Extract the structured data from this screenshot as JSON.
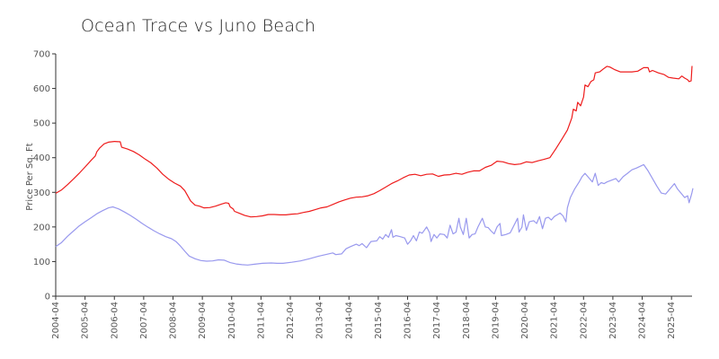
{
  "chart_data": {
    "type": "line",
    "title": "Ocean Trace vs  Juno Beach",
    "xlabel": "",
    "ylabel": "Price Per Sq. Ft",
    "ylim": [
      0,
      700
    ],
    "yticks": [
      0,
      100,
      200,
      300,
      400,
      500,
      600,
      700
    ],
    "xticks": [
      "2004-04",
      "2005-04",
      "2006-04",
      "2007-04",
      "2008-04",
      "2009-04",
      "2010-04",
      "2011-04",
      "2012-04",
      "2013-04",
      "2014-04",
      "2015-04",
      "2016-04",
      "2017-04",
      "2018-04",
      "2019-04",
      "2020-04",
      "2021-04",
      "2022-04",
      "2023-04",
      "2024-04",
      "2025-04"
    ],
    "x_range": [
      2004.25,
      2025.95
    ],
    "grid": false,
    "legend": "none",
    "series": [
      {
        "color": "#ee1c1c",
        "points": [
          [
            2004.25,
            297
          ],
          [
            2004.45,
            307
          ],
          [
            2004.65,
            322
          ],
          [
            2004.85,
            338
          ],
          [
            2005.05,
            355
          ],
          [
            2005.25,
            373
          ],
          [
            2005.45,
            392
          ],
          [
            2005.6,
            405
          ],
          [
            2005.65,
            417
          ],
          [
            2005.75,
            428
          ],
          [
            2005.9,
            440
          ],
          [
            2006.05,
            445
          ],
          [
            2006.25,
            447
          ],
          [
            2006.45,
            446
          ],
          [
            2006.5,
            430
          ],
          [
            2006.7,
            425
          ],
          [
            2006.9,
            418
          ],
          [
            2007.1,
            408
          ],
          [
            2007.3,
            396
          ],
          [
            2007.5,
            385
          ],
          [
            2007.7,
            370
          ],
          [
            2007.9,
            352
          ],
          [
            2008.1,
            338
          ],
          [
            2008.3,
            327
          ],
          [
            2008.5,
            318
          ],
          [
            2008.65,
            305
          ],
          [
            2008.75,
            290
          ],
          [
            2008.85,
            275
          ],
          [
            2009.0,
            263
          ],
          [
            2009.15,
            260
          ],
          [
            2009.3,
            255
          ],
          [
            2009.5,
            256
          ],
          [
            2009.7,
            260
          ],
          [
            2009.9,
            266
          ],
          [
            2010.05,
            270
          ],
          [
            2010.15,
            268
          ],
          [
            2010.2,
            258
          ],
          [
            2010.3,
            252
          ],
          [
            2010.35,
            245
          ],
          [
            2010.5,
            240
          ],
          [
            2010.7,
            233
          ],
          [
            2010.9,
            229
          ],
          [
            2011.1,
            230
          ],
          [
            2011.3,
            232
          ],
          [
            2011.5,
            236
          ],
          [
            2011.7,
            236
          ],
          [
            2011.9,
            235
          ],
          [
            2012.1,
            235
          ],
          [
            2012.3,
            237
          ],
          [
            2012.5,
            238
          ],
          [
            2012.7,
            242
          ],
          [
            2012.9,
            245
          ],
          [
            2013.1,
            250
          ],
          [
            2013.3,
            255
          ],
          [
            2013.5,
            258
          ],
          [
            2013.7,
            265
          ],
          [
            2013.9,
            272
          ],
          [
            2014.1,
            278
          ],
          [
            2014.3,
            283
          ],
          [
            2014.5,
            286
          ],
          [
            2014.7,
            287
          ],
          [
            2014.9,
            290
          ],
          [
            2015.1,
            296
          ],
          [
            2015.3,
            305
          ],
          [
            2015.5,
            315
          ],
          [
            2015.7,
            325
          ],
          [
            2015.9,
            333
          ],
          [
            2016.1,
            342
          ],
          [
            2016.3,
            350
          ],
          [
            2016.5,
            352
          ],
          [
            2016.7,
            348
          ],
          [
            2016.9,
            352
          ],
          [
            2017.1,
            353
          ],
          [
            2017.3,
            346
          ],
          [
            2017.5,
            350
          ],
          [
            2017.7,
            351
          ],
          [
            2017.9,
            355
          ],
          [
            2018.1,
            352
          ],
          [
            2018.3,
            358
          ],
          [
            2018.5,
            362
          ],
          [
            2018.7,
            362
          ],
          [
            2018.9,
            372
          ],
          [
            2019.1,
            378
          ],
          [
            2019.3,
            390
          ],
          [
            2019.5,
            388
          ],
          [
            2019.7,
            383
          ],
          [
            2019.9,
            380
          ],
          [
            2020.1,
            382
          ],
          [
            2020.3,
            388
          ],
          [
            2020.5,
            386
          ],
          [
            2020.7,
            391
          ],
          [
            2020.9,
            395
          ],
          [
            2021.1,
            400
          ],
          [
            2021.3,
            425
          ],
          [
            2021.5,
            452
          ],
          [
            2021.7,
            480
          ],
          [
            2021.85,
            515
          ],
          [
            2021.9,
            540
          ],
          [
            2022.0,
            535
          ],
          [
            2022.05,
            560
          ],
          [
            2022.15,
            550
          ],
          [
            2022.25,
            575
          ],
          [
            2022.3,
            610
          ],
          [
            2022.4,
            605
          ],
          [
            2022.5,
            620
          ],
          [
            2022.6,
            625
          ],
          [
            2022.65,
            645
          ],
          [
            2022.8,
            648
          ],
          [
            2022.95,
            658
          ],
          [
            2023.05,
            664
          ],
          [
            2023.15,
            662
          ],
          [
            2023.3,
            655
          ],
          [
            2023.5,
            648
          ],
          [
            2023.7,
            648
          ],
          [
            2023.9,
            648
          ],
          [
            2024.1,
            650
          ],
          [
            2024.3,
            660
          ],
          [
            2024.45,
            660
          ],
          [
            2024.5,
            648
          ],
          [
            2024.6,
            652
          ],
          [
            2024.8,
            645
          ],
          [
            2025.0,
            640
          ],
          [
            2025.15,
            632
          ],
          [
            2025.3,
            630
          ],
          [
            2025.5,
            628
          ],
          [
            2025.6,
            636
          ],
          [
            2025.7,
            630
          ],
          [
            2025.8,
            625
          ],
          [
            2025.85,
            620
          ],
          [
            2025.92,
            622
          ],
          [
            2025.95,
            665
          ]
        ]
      },
      {
        "color": "#9999ee",
        "points": [
          [
            2004.25,
            143
          ],
          [
            2004.45,
            155
          ],
          [
            2004.65,
            173
          ],
          [
            2004.85,
            188
          ],
          [
            2005.05,
            203
          ],
          [
            2005.25,
            215
          ],
          [
            2005.45,
            226
          ],
          [
            2005.65,
            238
          ],
          [
            2005.85,
            247
          ],
          [
            2006.05,
            255
          ],
          [
            2006.2,
            258
          ],
          [
            2006.4,
            252
          ],
          [
            2006.6,
            243
          ],
          [
            2006.8,
            233
          ],
          [
            2007.0,
            222
          ],
          [
            2007.2,
            210
          ],
          [
            2007.4,
            199
          ],
          [
            2007.6,
            189
          ],
          [
            2007.8,
            180
          ],
          [
            2008.0,
            172
          ],
          [
            2008.2,
            166
          ],
          [
            2008.35,
            158
          ],
          [
            2008.5,
            145
          ],
          [
            2008.65,
            130
          ],
          [
            2008.8,
            116
          ],
          [
            2009.0,
            108
          ],
          [
            2009.2,
            103
          ],
          [
            2009.4,
            101
          ],
          [
            2009.6,
            102
          ],
          [
            2009.8,
            105
          ],
          [
            2010.0,
            104
          ],
          [
            2010.2,
            97
          ],
          [
            2010.4,
            93
          ],
          [
            2010.6,
            91
          ],
          [
            2010.8,
            90
          ],
          [
            2011.0,
            92
          ],
          [
            2011.3,
            95
          ],
          [
            2011.6,
            96
          ],
          [
            2011.8,
            95
          ],
          [
            2012.0,
            95
          ],
          [
            2012.3,
            98
          ],
          [
            2012.6,
            102
          ],
          [
            2012.9,
            108
          ],
          [
            2013.2,
            115
          ],
          [
            2013.5,
            121
          ],
          [
            2013.7,
            125
          ],
          [
            2013.8,
            120
          ],
          [
            2014.0,
            122
          ],
          [
            2014.15,
            137
          ],
          [
            2014.3,
            143
          ],
          [
            2014.5,
            150
          ],
          [
            2014.6,
            146
          ],
          [
            2014.7,
            152
          ],
          [
            2014.85,
            140
          ],
          [
            2015.0,
            158
          ],
          [
            2015.2,
            160
          ],
          [
            2015.3,
            172
          ],
          [
            2015.4,
            165
          ],
          [
            2015.5,
            178
          ],
          [
            2015.6,
            170
          ],
          [
            2015.7,
            192
          ],
          [
            2015.75,
            170
          ],
          [
            2015.85,
            175
          ],
          [
            2016.0,
            172
          ],
          [
            2016.15,
            168
          ],
          [
            2016.25,
            150
          ],
          [
            2016.35,
            160
          ],
          [
            2016.45,
            175
          ],
          [
            2016.55,
            160
          ],
          [
            2016.65,
            185
          ],
          [
            2016.75,
            182
          ],
          [
            2016.9,
            200
          ],
          [
            2017.0,
            183
          ],
          [
            2017.05,
            158
          ],
          [
            2017.15,
            178
          ],
          [
            2017.25,
            168
          ],
          [
            2017.35,
            180
          ],
          [
            2017.5,
            178
          ],
          [
            2017.6,
            168
          ],
          [
            2017.7,
            205
          ],
          [
            2017.8,
            180
          ],
          [
            2017.9,
            185
          ],
          [
            2018.0,
            225
          ],
          [
            2018.05,
            200
          ],
          [
            2018.15,
            178
          ],
          [
            2018.25,
            225
          ],
          [
            2018.35,
            168
          ],
          [
            2018.45,
            178
          ],
          [
            2018.55,
            180
          ],
          [
            2018.65,
            200
          ],
          [
            2018.8,
            225
          ],
          [
            2018.9,
            200
          ],
          [
            2019.0,
            198
          ],
          [
            2019.1,
            188
          ],
          [
            2019.2,
            180
          ],
          [
            2019.3,
            200
          ],
          [
            2019.4,
            210
          ],
          [
            2019.45,
            175
          ],
          [
            2019.6,
            178
          ],
          [
            2019.75,
            183
          ],
          [
            2019.85,
            200
          ],
          [
            2020.0,
            225
          ],
          [
            2020.05,
            185
          ],
          [
            2020.15,
            200
          ],
          [
            2020.2,
            235
          ],
          [
            2020.3,
            190
          ],
          [
            2020.4,
            215
          ],
          [
            2020.55,
            218
          ],
          [
            2020.65,
            210
          ],
          [
            2020.75,
            230
          ],
          [
            2020.85,
            195
          ],
          [
            2020.95,
            225
          ],
          [
            2021.05,
            228
          ],
          [
            2021.15,
            220
          ],
          [
            2021.25,
            230
          ],
          [
            2021.35,
            235
          ],
          [
            2021.45,
            240
          ],
          [
            2021.55,
            232
          ],
          [
            2021.65,
            215
          ],
          [
            2021.7,
            255
          ],
          [
            2021.8,
            285
          ],
          [
            2021.95,
            310
          ],
          [
            2022.1,
            330
          ],
          [
            2022.2,
            345
          ],
          [
            2022.3,
            355
          ],
          [
            2022.45,
            340
          ],
          [
            2022.55,
            330
          ],
          [
            2022.65,
            355
          ],
          [
            2022.75,
            320
          ],
          [
            2022.85,
            328
          ],
          [
            2022.95,
            325
          ],
          [
            2023.05,
            330
          ],
          [
            2023.2,
            335
          ],
          [
            2023.35,
            340
          ],
          [
            2023.45,
            330
          ],
          [
            2023.6,
            345
          ],
          [
            2023.75,
            355
          ],
          [
            2023.9,
            365
          ],
          [
            2024.05,
            370
          ],
          [
            2024.3,
            380
          ],
          [
            2024.45,
            362
          ],
          [
            2024.6,
            340
          ],
          [
            2024.75,
            318
          ],
          [
            2024.9,
            298
          ],
          [
            2025.05,
            295
          ],
          [
            2025.2,
            310
          ],
          [
            2025.35,
            325
          ],
          [
            2025.45,
            310
          ],
          [
            2025.6,
            295
          ],
          [
            2025.7,
            285
          ],
          [
            2025.8,
            290
          ],
          [
            2025.85,
            270
          ],
          [
            2025.92,
            290
          ],
          [
            2025.95,
            300
          ],
          [
            2025.98,
            312
          ]
        ]
      }
    ]
  }
}
